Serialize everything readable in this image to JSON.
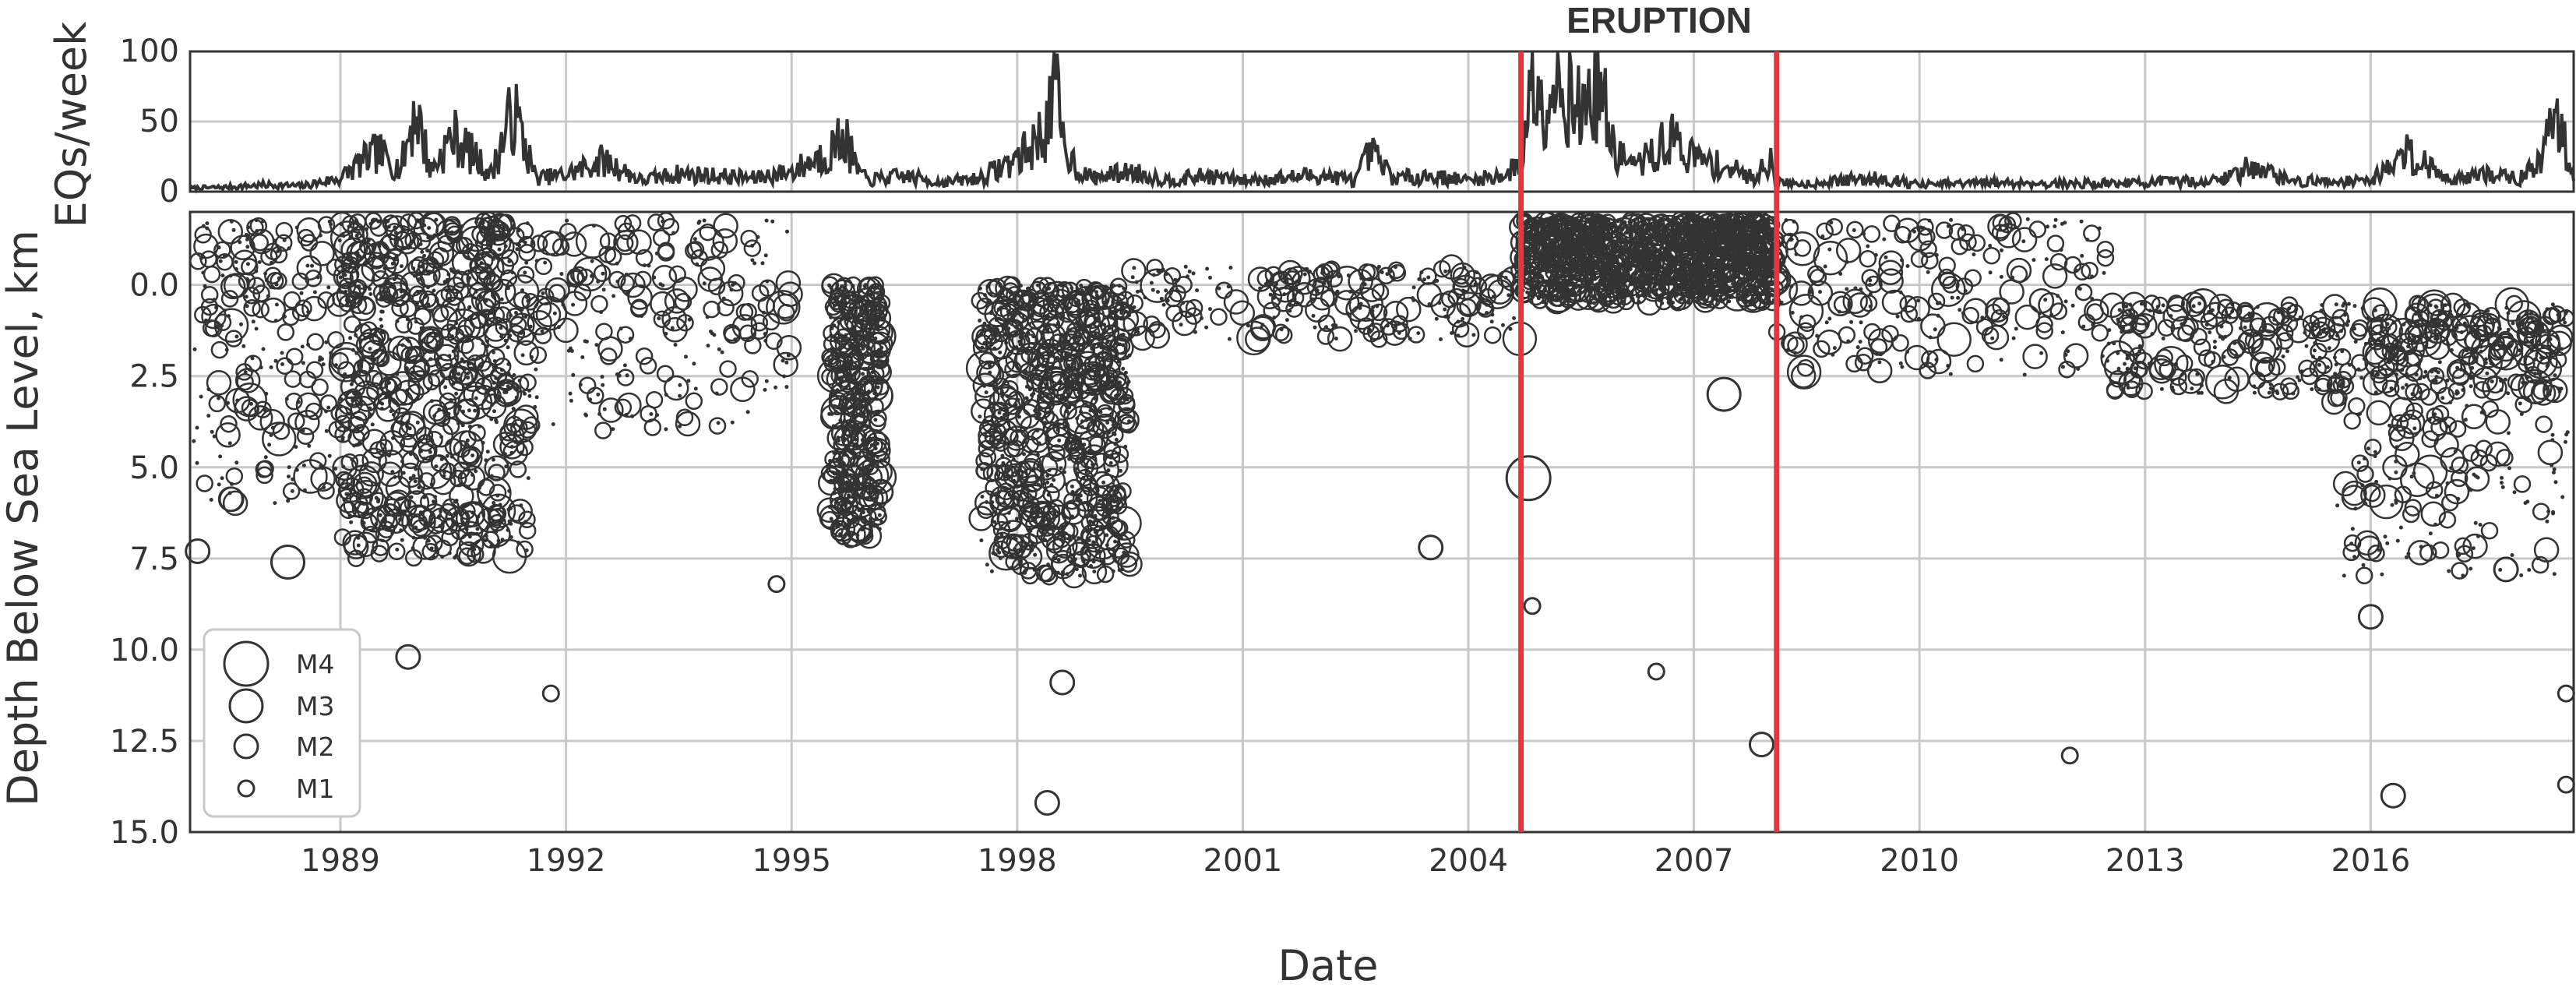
{
  "chart_data": [
    {
      "type": "line",
      "panel": "top",
      "ylabel": "EQs/week",
      "ylim": [
        0,
        100
      ],
      "yticks": [
        "0",
        "50",
        "100"
      ],
      "xlim": [
        1987.0,
        2018.7
      ],
      "grid": true,
      "line_color": "#333333",
      "annotation": "ERUPTION",
      "series": [
        {
          "x": [
            1987.0,
            1987.5,
            1988.0,
            1988.5,
            1989.0,
            1989.25,
            1989.5,
            1989.8,
            1990.0,
            1990.2,
            1990.5,
            1990.8,
            1991.0,
            1991.3,
            1991.6,
            1992.0,
            1992.5,
            1993.0,
            1993.5,
            1994.0,
            1994.5,
            1995.0,
            1995.5,
            1995.7,
            1995.85,
            1996.0,
            1996.5,
            1997.0,
            1997.5,
            1997.8,
            1998.0,
            1998.2,
            1998.4,
            1998.5,
            1998.6,
            1998.8,
            1999.0,
            1999.5,
            2000.0,
            2000.5,
            2001.0,
            2001.5,
            2002.0,
            2002.5,
            2002.7,
            2003.0,
            2003.5,
            2004.0,
            2004.5,
            2004.7,
            2004.85,
            2004.95,
            2005.2,
            2005.5,
            2005.75,
            2005.9,
            2006.2,
            2006.5,
            2006.7,
            2007.0,
            2007.5,
            2007.8,
            2008.0,
            2008.1,
            2008.5,
            2009.0,
            2009.5,
            2010.0,
            2011.0,
            2012.0,
            2013.0,
            2014.0,
            2014.5,
            2014.8,
            2015.0,
            2016.0,
            2016.5,
            2017.0,
            2017.5,
            2018.0,
            2018.3,
            2018.45,
            2018.7
          ],
          "y": [
            3,
            4,
            6,
            5,
            12,
            25,
            35,
            20,
            75,
            18,
            50,
            30,
            15,
            72,
            12,
            15,
            28,
            10,
            16,
            14,
            12,
            18,
            35,
            50,
            22,
            10,
            14,
            8,
            12,
            22,
            30,
            40,
            60,
            100,
            45,
            20,
            12,
            18,
            10,
            14,
            10,
            12,
            15,
            10,
            35,
            12,
            14,
            10,
            15,
            25,
            100,
            85,
            100,
            70,
            100,
            40,
            22,
            35,
            48,
            30,
            20,
            12,
            30,
            8,
            7,
            10,
            12,
            6,
            8,
            7,
            8,
            10,
            25,
            12,
            9,
            10,
            35,
            12,
            15,
            12,
            30,
            75,
            12
          ]
        }
      ]
    },
    {
      "type": "scatter",
      "panel": "bottom",
      "xlabel": "Date",
      "ylabel": "Depth Below Sea Level, km",
      "xlim": [
        1987.0,
        2018.7
      ],
      "ylim": [
        15.0,
        -2.0
      ],
      "xticks": [
        "1989",
        "1992",
        "1995",
        "1998",
        "2001",
        "2004",
        "2007",
        "2010",
        "2013",
        "2016"
      ],
      "yticks": [
        "0.0",
        "2.5",
        "5.0",
        "7.5",
        "10.0",
        "12.5",
        "15.0"
      ],
      "grid": true,
      "marker": "open circle, size proportional to magnitude",
      "marker_color": "#333333",
      "eruption_start": 2004.7,
      "eruption_end": 2008.1,
      "eruption_line_color": "#e8353d",
      "legend": {
        "placement": "bottom-left",
        "entries": [
          "M4",
          "M3",
          "M2",
          "M1"
        ]
      },
      "clusters": [
        {
          "x_range": [
            1987.0,
            1989.0
          ],
          "depth_range": [
            -1.8,
            6.0
          ],
          "density": "moderate"
        },
        {
          "x_range": [
            1989.0,
            1991.5
          ],
          "depth_range": [
            -1.8,
            7.5
          ],
          "density": "very high"
        },
        {
          "x_range": [
            1991.5,
            1995.0
          ],
          "depth_range": [
            -1.8,
            4.0
          ],
          "density": "moderate"
        },
        {
          "x_range": [
            1995.5,
            1996.2
          ],
          "depth_range": [
            0.0,
            7.0
          ],
          "density": "high"
        },
        {
          "x_range": [
            1997.5,
            1999.5
          ],
          "depth_range": [
            0.0,
            8.0
          ],
          "density": "very high"
        },
        {
          "x_range": [
            1999.5,
            2004.7
          ],
          "depth_range": [
            -0.5,
            1.5
          ],
          "density": "moderate"
        },
        {
          "x_range": [
            2004.7,
            2008.1
          ],
          "depth_range": [
            -1.8,
            0.5
          ],
          "density": "saturated"
        },
        {
          "x_range": [
            2008.1,
            2012.5
          ],
          "depth_range": [
            -1.8,
            2.5
          ],
          "density": "moderate"
        },
        {
          "x_range": [
            2012.5,
            2018.7
          ],
          "depth_range": [
            0.5,
            3.0
          ],
          "density": "high"
        },
        {
          "x_range": [
            2015.5,
            2018.7
          ],
          "depth_range": [
            1.0,
            8.0
          ],
          "density": "moderate"
        }
      ],
      "isolated_events": [
        {
          "x": 1987.1,
          "depth": 7.3,
          "mag": 2
        },
        {
          "x": 1988.3,
          "depth": 7.6,
          "mag": 3
        },
        {
          "x": 1989.9,
          "depth": 10.2,
          "mag": 2
        },
        {
          "x": 1991.8,
          "depth": 11.2,
          "mag": 1
        },
        {
          "x": 1994.8,
          "depth": 8.2,
          "mag": 1
        },
        {
          "x": 1998.4,
          "depth": 14.2,
          "mag": 2
        },
        {
          "x": 1998.6,
          "depth": 10.9,
          "mag": 2
        },
        {
          "x": 2003.5,
          "depth": 7.2,
          "mag": 2
        },
        {
          "x": 2004.8,
          "depth": 5.3,
          "mag": 4
        },
        {
          "x": 2004.85,
          "depth": 8.8,
          "mag": 1
        },
        {
          "x": 2006.5,
          "depth": 10.6,
          "mag": 1
        },
        {
          "x": 2007.4,
          "depth": 3.0,
          "mag": 3
        },
        {
          "x": 2007.9,
          "depth": 12.6,
          "mag": 2
        },
        {
          "x": 2012.0,
          "depth": 12.9,
          "mag": 1
        },
        {
          "x": 2016.0,
          "depth": 9.1,
          "mag": 2
        },
        {
          "x": 2016.3,
          "depth": 14.0,
          "mag": 2
        },
        {
          "x": 2017.8,
          "depth": 7.8,
          "mag": 2
        },
        {
          "x": 2018.6,
          "depth": 13.7,
          "mag": 1
        },
        {
          "x": 2018.6,
          "depth": 11.2,
          "mag": 1
        }
      ]
    }
  ]
}
